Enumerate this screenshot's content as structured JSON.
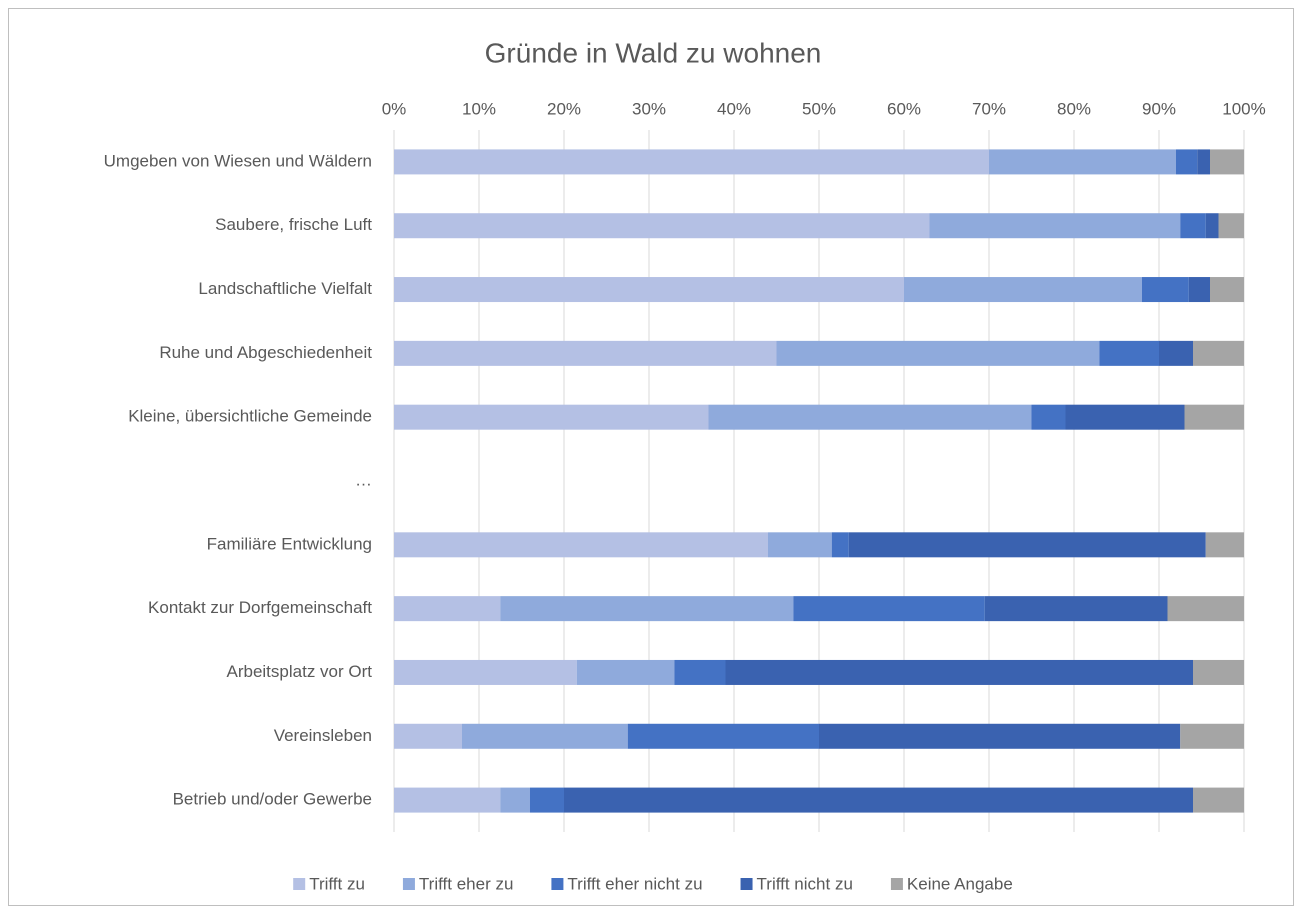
{
  "chart_data": {
    "type": "stacked_bar_horizontal",
    "title": "Gründe in Wald zu wohnen",
    "categories": [
      "Umgeben von Wiesen und Wäldern",
      "Saubere, frische Luft",
      "Landschaftliche Vielfalt",
      "Ruhe und Abgeschiedenheit",
      "Kleine, übersichtliche Gemeinde",
      "…",
      "Familiäre Entwicklung",
      "Kontakt zur Dorfgemeinschaft",
      "Arbeitsplatz vor Ort",
      "Vereinsleben",
      "Betrieb und/oder Gewerbe"
    ],
    "series": [
      {
        "name": "Trifft zu",
        "color": "#b4c0e4",
        "values": [
          70,
          63,
          60,
          45,
          37,
          null,
          44,
          12.5,
          21.5,
          8,
          12.5
        ]
      },
      {
        "name": "Trifft eher zu",
        "color": "#8faadc",
        "values": [
          22,
          29.5,
          28,
          38,
          38,
          null,
          7.5,
          34.5,
          11.5,
          19.5,
          3.5
        ]
      },
      {
        "name": "Trifft eher nicht zu",
        "color": "#4472c4",
        "values": [
          2.5,
          3,
          5.5,
          7,
          4,
          null,
          2,
          22.5,
          6,
          22.5,
          4
        ]
      },
      {
        "name": "Trifft nicht zu",
        "color": "#3a62b0",
        "values": [
          1.5,
          1.5,
          2.5,
          4,
          14,
          null,
          42,
          21.5,
          55,
          42.5,
          74
        ]
      },
      {
        "name": "Keine Angabe",
        "color": "#a5a5a5",
        "values": [
          4,
          3,
          4,
          6,
          7,
          null,
          4.5,
          9,
          6,
          7.5,
          6
        ]
      }
    ],
    "xlim": [
      0,
      100
    ],
    "xticks": [
      {
        "value": 0,
        "label": "0%"
      },
      {
        "value": 10,
        "label": "10%"
      },
      {
        "value": 20,
        "label": "20%"
      },
      {
        "value": 30,
        "label": "30%"
      },
      {
        "value": 40,
        "label": "40%"
      },
      {
        "value": 50,
        "label": "50%"
      },
      {
        "value": 60,
        "label": "60%"
      },
      {
        "value": 70,
        "label": "70%"
      },
      {
        "value": 80,
        "label": "80%"
      },
      {
        "value": 90,
        "label": "90%"
      },
      {
        "value": 100,
        "label": "100%"
      }
    ],
    "grid": true,
    "legend": "bottom"
  }
}
